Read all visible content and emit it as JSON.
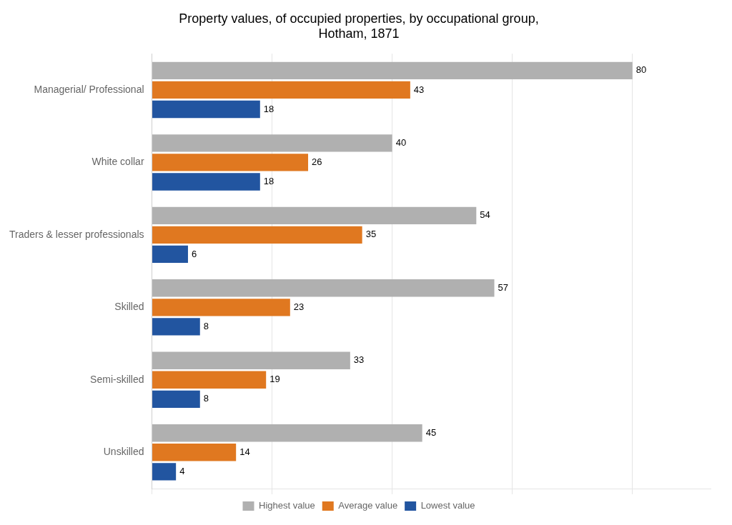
{
  "chart_data": {
    "type": "bar",
    "orientation": "horizontal",
    "title": "Property values, of occupied properties, by occupational group,\nHotham, 1871",
    "categories": [
      "Managerial/ Professional",
      "White collar",
      "Traders & lesser professionals",
      "Skilled",
      "Semi-skilled",
      "Unskilled"
    ],
    "series": [
      {
        "name": "Highest value",
        "color": "#b0b0b0",
        "values": [
          80,
          40,
          54,
          57,
          33,
          45
        ]
      },
      {
        "name": "Average value",
        "color": "#e07820",
        "values": [
          43,
          26,
          35,
          23,
          19,
          14
        ]
      },
      {
        "name": "Lowest value",
        "color": "#2255a0",
        "values": [
          18,
          18,
          6,
          8,
          8,
          4
        ]
      }
    ],
    "xlim": [
      0,
      93
    ],
    "xticks": [
      0,
      20,
      40,
      60,
      80
    ],
    "grid": true,
    "tick_labels": "y",
    "data_labels": true,
    "legend": "bottom"
  }
}
